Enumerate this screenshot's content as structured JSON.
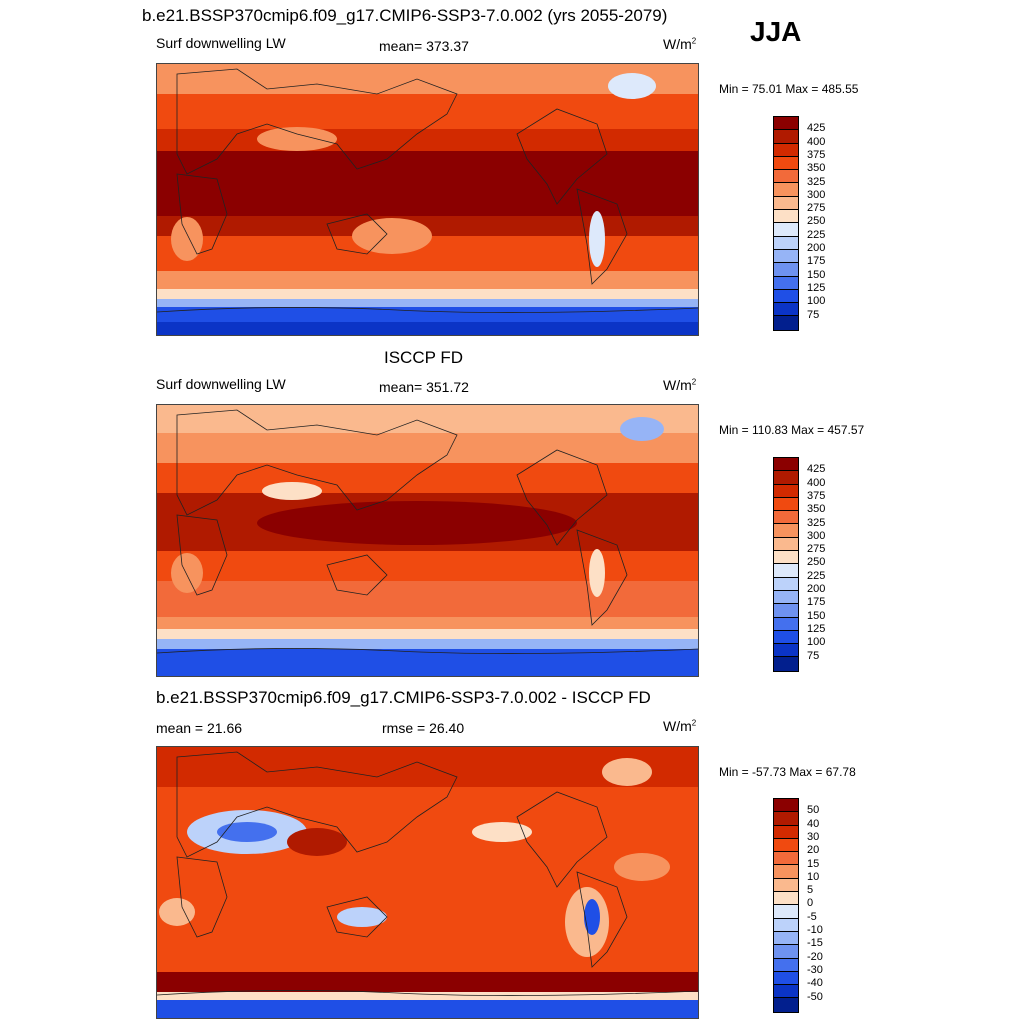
{
  "header": {
    "title": "b.e21.BSSP370cmip6.f09_g17.CMIP6-SSP3-7.0.002 (yrs 2055-2079)",
    "season": "JJA"
  },
  "panels": [
    {
      "title": "",
      "left_label": "Surf downwelling LW",
      "center_label": "mean= 373.37",
      "units": "W/m",
      "units_sup": "2",
      "minmax": "Min =  75.01 Max = 485.55",
      "levels": [
        "425",
        "400",
        "375",
        "350",
        "325",
        "300",
        "275",
        "250",
        "225",
        "200",
        "175",
        "150",
        "125",
        "100",
        "75"
      ],
      "colors": [
        "#8b0000",
        "#b01a00",
        "#d22a00",
        "#f04a10",
        "#f26a3a",
        "#f7935e",
        "#fab98e",
        "#fde0c6",
        "#dde9fb",
        "#bcd2fa",
        "#96b4f6",
        "#6e92f0",
        "#4470ee",
        "#1f4fe6",
        "#0b34c6",
        "#021f8e"
      ]
    },
    {
      "title": "ISCCP FD",
      "left_label": "Surf downwelling LW",
      "center_label": "mean= 351.72",
      "units": "W/m",
      "units_sup": "2",
      "minmax": "Min = 110.83 Max = 457.57",
      "levels": [
        "425",
        "400",
        "375",
        "350",
        "325",
        "300",
        "275",
        "250",
        "225",
        "200",
        "175",
        "150",
        "125",
        "100",
        "75"
      ],
      "colors": [
        "#8b0000",
        "#b01a00",
        "#d22a00",
        "#f04a10",
        "#f26a3a",
        "#f7935e",
        "#fab98e",
        "#fde0c6",
        "#dde9fb",
        "#bcd2fa",
        "#96b4f6",
        "#6e92f0",
        "#4470ee",
        "#1f4fe6",
        "#0b34c6",
        "#021f8e"
      ]
    },
    {
      "title": "b.e21.BSSP370cmip6.f09_g17.CMIP6-SSP3-7.0.002 - ISCCP FD",
      "left_label": "mean =  21.66",
      "center_label": "rmse =  26.40",
      "units": "W/m",
      "units_sup": "2",
      "minmax": "Min = -57.73 Max =  67.78",
      "levels": [
        "50",
        "40",
        "30",
        "20",
        "15",
        "10",
        "5",
        "0",
        "-5",
        "-10",
        "-15",
        "-20",
        "-30",
        "-40",
        "-50"
      ],
      "colors": [
        "#8b0000",
        "#b01a00",
        "#d22a00",
        "#f04a10",
        "#f26a3a",
        "#f7935e",
        "#fab98e",
        "#fde0c6",
        "#dde9fb",
        "#bcd2fa",
        "#96b4f6",
        "#6e92f0",
        "#4470ee",
        "#1f4fe6",
        "#0b34c6",
        "#021f8e"
      ]
    }
  ]
}
